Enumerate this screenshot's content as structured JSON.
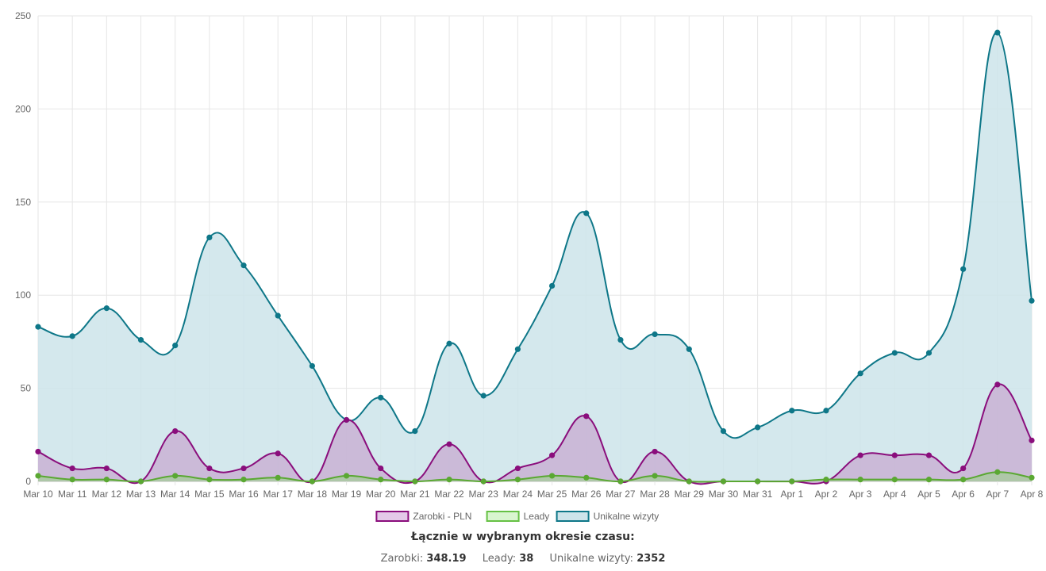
{
  "chart_data": {
    "type": "area",
    "categories": [
      "Mar 10",
      "Mar 11",
      "Mar 12",
      "Mar 13",
      "Mar 14",
      "Mar 15",
      "Mar 16",
      "Mar 17",
      "Mar 18",
      "Mar 19",
      "Mar 20",
      "Mar 21",
      "Mar 22",
      "Mar 23",
      "Mar 24",
      "Mar 25",
      "Mar 26",
      "Mar 27",
      "Mar 28",
      "Mar 29",
      "Mar 30",
      "Mar 31",
      "Apr 1",
      "Apr 2",
      "Apr 3",
      "Apr 4",
      "Apr 5",
      "Apr 6",
      "Apr 7",
      "Apr 8"
    ],
    "ylim": [
      0,
      250
    ],
    "yticks": [
      0,
      50,
      100,
      150,
      200,
      250
    ],
    "grid": true,
    "legend_position": "bottom",
    "series": [
      {
        "name": "Unikalne wizyty",
        "stroke": "#0e7788",
        "fill": "#cde4ea",
        "values": [
          83,
          78,
          93,
          76,
          73,
          131,
          116,
          89,
          62,
          33,
          45,
          27,
          74,
          46,
          71,
          105,
          144,
          76,
          79,
          71,
          27,
          29,
          38,
          38,
          58,
          69,
          69,
          114,
          241,
          97
        ]
      },
      {
        "name": "Zarobki - PLN",
        "stroke": "#8a0e7c",
        "fill": "#c9b1d3",
        "values": [
          16,
          7,
          7,
          0,
          27,
          7,
          7,
          15,
          0,
          33,
          7,
          0,
          20,
          0,
          7,
          14,
          35,
          0,
          16,
          0,
          0,
          0,
          0,
          0,
          14,
          14,
          14,
          7,
          52,
          22
        ]
      },
      {
        "name": "Leady",
        "stroke": "#5aa832",
        "fill": "#a9c9a0",
        "values": [
          3,
          1,
          1,
          0,
          3,
          1,
          1,
          2,
          0,
          3,
          1,
          0,
          1,
          0,
          1,
          3,
          2,
          0,
          3,
          0,
          0,
          0,
          0,
          1,
          1,
          1,
          1,
          1,
          5,
          2
        ]
      }
    ],
    "legend": [
      {
        "name": "Zarobki - PLN",
        "stroke": "#8a0e7c",
        "fill": "#e4c9e8"
      },
      {
        "name": "Leady",
        "stroke": "#66c144",
        "fill": "#d9f5cf"
      },
      {
        "name": "Unikalne wizyty",
        "stroke": "#0e7788",
        "fill": "#cde4ea"
      }
    ]
  },
  "summary": {
    "title": "Łącznie w wybranym okresie czasu:",
    "items": [
      {
        "label": "Zarobki:",
        "value": "348.19"
      },
      {
        "label": "Leady:",
        "value": "38"
      },
      {
        "label": "Unikalne wizyty:",
        "value": "2352"
      }
    ]
  }
}
